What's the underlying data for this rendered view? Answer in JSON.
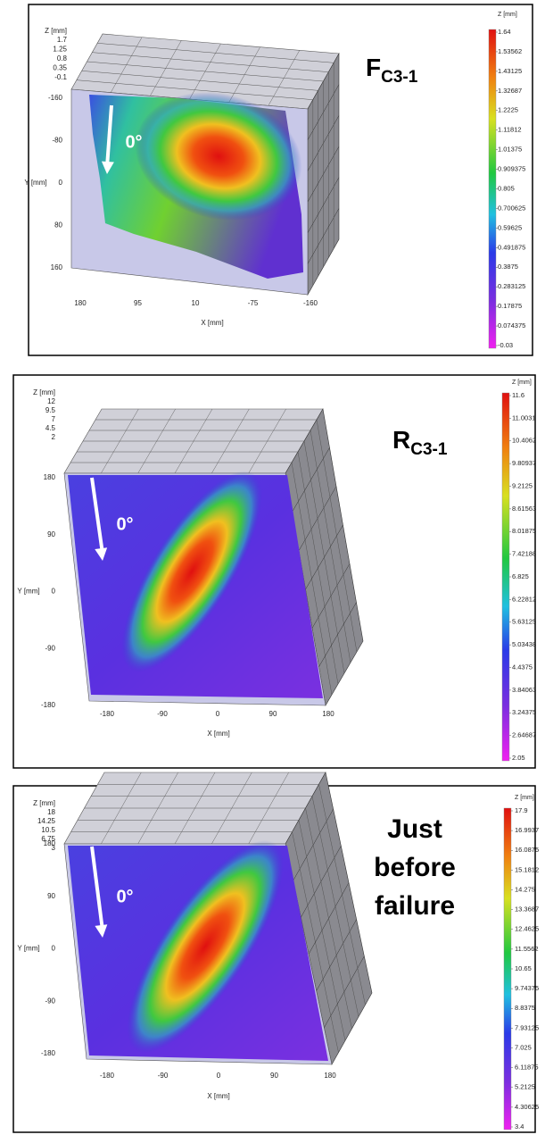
{
  "panels": [
    {
      "title": {
        "main": "F",
        "sub": "C3-1"
      },
      "arrow_label": "0°",
      "z_axis": {
        "label": "Z [mm]",
        "ticks": [
          "1.7",
          "1.25",
          "0.8",
          "0.35",
          "-0.1"
        ]
      },
      "y_axis": {
        "label": "Y [mm]",
        "ticks": [
          "-160",
          "-80",
          "0",
          "80",
          "160"
        ]
      },
      "x_axis": {
        "label": "X [mm]",
        "ticks": [
          "180",
          "95",
          "10",
          "-75",
          "-160"
        ]
      },
      "colorbar": {
        "label": "Z [mm]",
        "ticks": [
          "1.64",
          "1.53562",
          "1.43125",
          "1.32687",
          "1.2225",
          "1.11812",
          "1.01375",
          "0.909375",
          "0.805",
          "0.700625",
          "0.59625",
          "0.491875",
          "0.3875",
          "0.283125",
          "0.17875",
          "0.074375",
          "-0.03"
        ]
      }
    },
    {
      "title": {
        "main": "R",
        "sub": "C3-1"
      },
      "arrow_label": "0°",
      "z_axis": {
        "label": "Z [mm]",
        "ticks": [
          "12",
          "9.5",
          "7",
          "4.5",
          "2"
        ]
      },
      "y_axis": {
        "label": "Y [mm]",
        "ticks": [
          "180",
          "90",
          "0",
          "-90",
          "-180"
        ]
      },
      "x_axis": {
        "label": "X [mm]",
        "ticks": [
          "-180",
          "-90",
          "0",
          "90",
          "180"
        ]
      },
      "colorbar": {
        "label": "Z [mm]",
        "ticks": [
          "11.6",
          "11.0031",
          "10.4062",
          "9.80937",
          "9.2125",
          "8.61563",
          "8.01875",
          "7.42188",
          "6.825",
          "6.22812",
          "5.63125",
          "5.03438",
          "4.4375",
          "3.84063",
          "3.24375",
          "2.64687",
          "2.05"
        ]
      }
    },
    {
      "title": {
        "lines": [
          "Just",
          "before",
          "failure"
        ]
      },
      "arrow_label": "0°",
      "z_axis": {
        "label": "Z [mm]",
        "ticks": [
          "18",
          "14.25",
          "10.5",
          "6.75",
          "3"
        ]
      },
      "y_axis": {
        "label": "Y [mm]",
        "ticks": [
          "180",
          "90",
          "0",
          "-90",
          "-180"
        ]
      },
      "x_axis": {
        "label": "X [mm]",
        "ticks": [
          "-180",
          "-90",
          "0",
          "90",
          "180"
        ]
      },
      "colorbar": {
        "label": "Z [mm]",
        "ticks": [
          "17.9",
          "16.9937",
          "16.0875",
          "15.1812",
          "14.275",
          "13.3687",
          "12.4625",
          "11.5562",
          "10.65",
          "9.74375",
          "8.8375",
          "7.93125",
          "7.025",
          "6.11875",
          "5.2125",
          "4.30625",
          "3.4"
        ]
      }
    }
  ]
}
